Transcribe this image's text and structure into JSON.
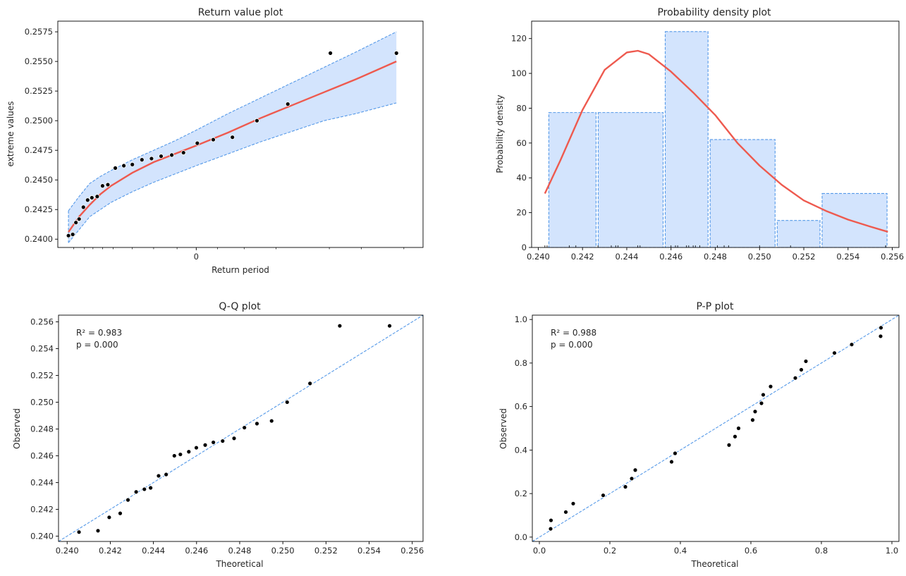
{
  "colors": {
    "band_fill": "#d3e4fd",
    "band_edge": "#5599e8",
    "fit_line": "#ee5a4f",
    "points": "#000000",
    "axes": "#000000"
  },
  "chart_data": [
    {
      "id": "return",
      "type": "scatter",
      "title": "Return value plot",
      "xlabel": "Return period",
      "ylabel": "extreme values",
      "x_ticks": [
        "0"
      ],
      "y_ticks": [
        "0.2400",
        "0.2425",
        "0.2450",
        "0.2475",
        "0.2500",
        "0.2525",
        "0.2550",
        "0.2575"
      ],
      "ylim": [
        0.2393,
        0.2584
      ],
      "x_domain": [
        -1.3,
        2.13
      ],
      "x_minor_ticks": [
        -1.15,
        -1.05,
        -0.97,
        -0.88,
        -0.78,
        -0.6,
        -0.4,
        -0.18,
        0.2,
        0.45,
        0.75,
        1.25,
        1.55,
        1.95
      ],
      "points": {
        "x": [
          -1.2,
          -1.16,
          -1.13,
          -1.1,
          -1.06,
          -1.02,
          -0.98,
          -0.93,
          -0.88,
          -0.83,
          -0.76,
          -0.68,
          -0.6,
          -0.51,
          -0.42,
          -0.33,
          -0.23,
          -0.12,
          0.01,
          0.16,
          0.34,
          0.57,
          0.86,
          1.26,
          1.88
        ],
        "y": [
          0.2403,
          0.2404,
          0.2414,
          0.2417,
          0.2427,
          0.2433,
          0.2435,
          0.2436,
          0.2445,
          0.2446,
          0.246,
          0.2462,
          0.2463,
          0.2467,
          0.2468,
          0.247,
          0.2471,
          0.2473,
          0.2481,
          0.2484,
          0.2486,
          0.25,
          0.2514,
          0.2557,
          0.2557
        ]
      },
      "fit": {
        "x": [
          -1.2,
          -1.1,
          -1.0,
          -0.9,
          -0.8,
          -0.6,
          -0.4,
          -0.2,
          0.0,
          0.3,
          0.6,
          0.9,
          1.2,
          1.5,
          1.88
        ],
        "y": [
          0.2406,
          0.2419,
          0.2429,
          0.2438,
          0.2445,
          0.2456,
          0.2465,
          0.2472,
          0.2479,
          0.249,
          0.2502,
          0.2513,
          0.2524,
          0.2535,
          0.255
        ]
      },
      "band_upper": {
        "x": [
          -1.2,
          -1.1,
          -1.0,
          -0.9,
          -0.8,
          -0.6,
          -0.4,
          -0.2,
          0.0,
          0.3,
          0.6,
          0.9,
          1.2,
          1.5,
          1.88
        ],
        "y": [
          0.2424,
          0.2436,
          0.2447,
          0.2453,
          0.2458,
          0.2467,
          0.2475,
          0.2483,
          0.2492,
          0.2506,
          0.2519,
          0.2532,
          0.2545,
          0.2558,
          0.2575
        ]
      },
      "band_lower": {
        "x": [
          -1.2,
          -1.1,
          -1.0,
          -0.9,
          -0.8,
          -0.6,
          -0.4,
          -0.2,
          0.0,
          0.3,
          0.6,
          0.9,
          1.2,
          1.5,
          1.88
        ],
        "y": [
          0.2397,
          0.2408,
          0.2419,
          0.2425,
          0.2431,
          0.244,
          0.2448,
          0.2455,
          0.2462,
          0.2472,
          0.2482,
          0.2491,
          0.25,
          0.2506,
          0.2515
        ]
      }
    },
    {
      "id": "pdf",
      "type": "bar",
      "title": "Probability density plot",
      "xlabel": "",
      "ylabel": "Probability density",
      "x_ticks": [
        "0.240",
        "0.242",
        "0.244",
        "0.246",
        "0.248",
        "0.250",
        "0.252",
        "0.254",
        "0.256"
      ],
      "y_ticks": [
        "0",
        "20",
        "40",
        "60",
        "80",
        "100",
        "120"
      ],
      "xlim": [
        0.2397,
        0.2563
      ],
      "ylim": [
        0,
        130
      ],
      "bins": [
        {
          "left": 0.24043,
          "right": 0.24266,
          "value": 77.5
        },
        {
          "left": 0.24266,
          "right": 0.24569,
          "value": 77.5
        },
        {
          "left": 0.24569,
          "right": 0.24772,
          "value": 124
        },
        {
          "left": 0.24772,
          "right": 0.25075,
          "value": 62
        },
        {
          "left": 0.25075,
          "right": 0.25278,
          "value": 15.5
        },
        {
          "left": 0.25278,
          "right": 0.25581,
          "value": 31
        }
      ],
      "curve": {
        "x": [
          0.2403,
          0.241,
          0.242,
          0.243,
          0.244,
          0.2445,
          0.245,
          0.246,
          0.247,
          0.248,
          0.249,
          0.25,
          0.251,
          0.252,
          0.253,
          0.254,
          0.255,
          0.2558
        ],
        "y": [
          31,
          50,
          79,
          102,
          112,
          113,
          111,
          101,
          89,
          76,
          60,
          47,
          36,
          27,
          21,
          16,
          12,
          9
        ]
      },
      "rug": [
        0.2403,
        0.2404,
        0.2414,
        0.2417,
        0.2427,
        0.2433,
        0.2435,
        0.2436,
        0.2445,
        0.2446,
        0.246,
        0.2462,
        0.2463,
        0.2467,
        0.2468,
        0.247,
        0.2471,
        0.2473,
        0.2481,
        0.2484,
        0.2486,
        0.25,
        0.2514,
        0.2557,
        0.2557
      ]
    },
    {
      "id": "qq",
      "type": "scatter",
      "title": "Q-Q plot",
      "xlabel": "Theoretical",
      "ylabel": "Observed",
      "x_ticks": [
        "0.240",
        "0.242",
        "0.244",
        "0.246",
        "0.248",
        "0.250",
        "0.252",
        "0.254",
        "0.256"
      ],
      "y_ticks": [
        "0.240",
        "0.242",
        "0.244",
        "0.246",
        "0.248",
        "0.250",
        "0.252",
        "0.254",
        "0.256"
      ],
      "xlim": [
        0.2396,
        0.2565
      ],
      "ylim": [
        0.2396,
        0.2565
      ],
      "annotation": [
        "R² = 0.983",
        "p = 0.000"
      ],
      "points": {
        "x": [
          0.24055,
          0.24143,
          0.24195,
          0.24246,
          0.24282,
          0.2432,
          0.24358,
          0.24387,
          0.24424,
          0.24459,
          0.24497,
          0.24525,
          0.24564,
          0.24599,
          0.2464,
          0.24678,
          0.24721,
          0.24774,
          0.24822,
          0.2488,
          0.24948,
          0.2502,
          0.25126,
          0.25264,
          0.25495
        ],
        "y": [
          0.2403,
          0.2404,
          0.2414,
          0.2417,
          0.2427,
          0.2433,
          0.2435,
          0.2436,
          0.2445,
          0.2446,
          0.246,
          0.2461,
          0.2463,
          0.2466,
          0.2468,
          0.247,
          0.2471,
          0.2473,
          0.2481,
          0.2484,
          0.2486,
          0.25,
          0.2514,
          0.2557,
          0.2557
        ]
      }
    },
    {
      "id": "pp",
      "type": "scatter",
      "title": "P-P plot",
      "xlabel": "Theoretical",
      "ylabel": "Observed",
      "x_ticks": [
        "0.0",
        "0.2",
        "0.4",
        "0.6",
        "0.8",
        "1.0"
      ],
      "y_ticks": [
        "0.0",
        "0.2",
        "0.4",
        "0.6",
        "0.8",
        "1.0"
      ],
      "xlim": [
        -0.02,
        1.02
      ],
      "ylim": [
        -0.02,
        1.02
      ],
      "annotation": [
        "R² = 0.988",
        "p = 0.000"
      ],
      "points": {
        "x": [
          0.032,
          0.033,
          0.075,
          0.096,
          0.181,
          0.244,
          0.262,
          0.272,
          0.375,
          0.385,
          0.538,
          0.555,
          0.565,
          0.605,
          0.612,
          0.63,
          0.635,
          0.656,
          0.726,
          0.743,
          0.756,
          0.837,
          0.886,
          0.968,
          0.969
        ],
        "y": [
          0.038,
          0.077,
          0.115,
          0.154,
          0.192,
          0.231,
          0.269,
          0.308,
          0.346,
          0.385,
          0.423,
          0.462,
          0.5,
          0.538,
          0.577,
          0.615,
          0.654,
          0.692,
          0.731,
          0.769,
          0.808,
          0.846,
          0.885,
          0.923,
          0.962
        ]
      }
    }
  ]
}
